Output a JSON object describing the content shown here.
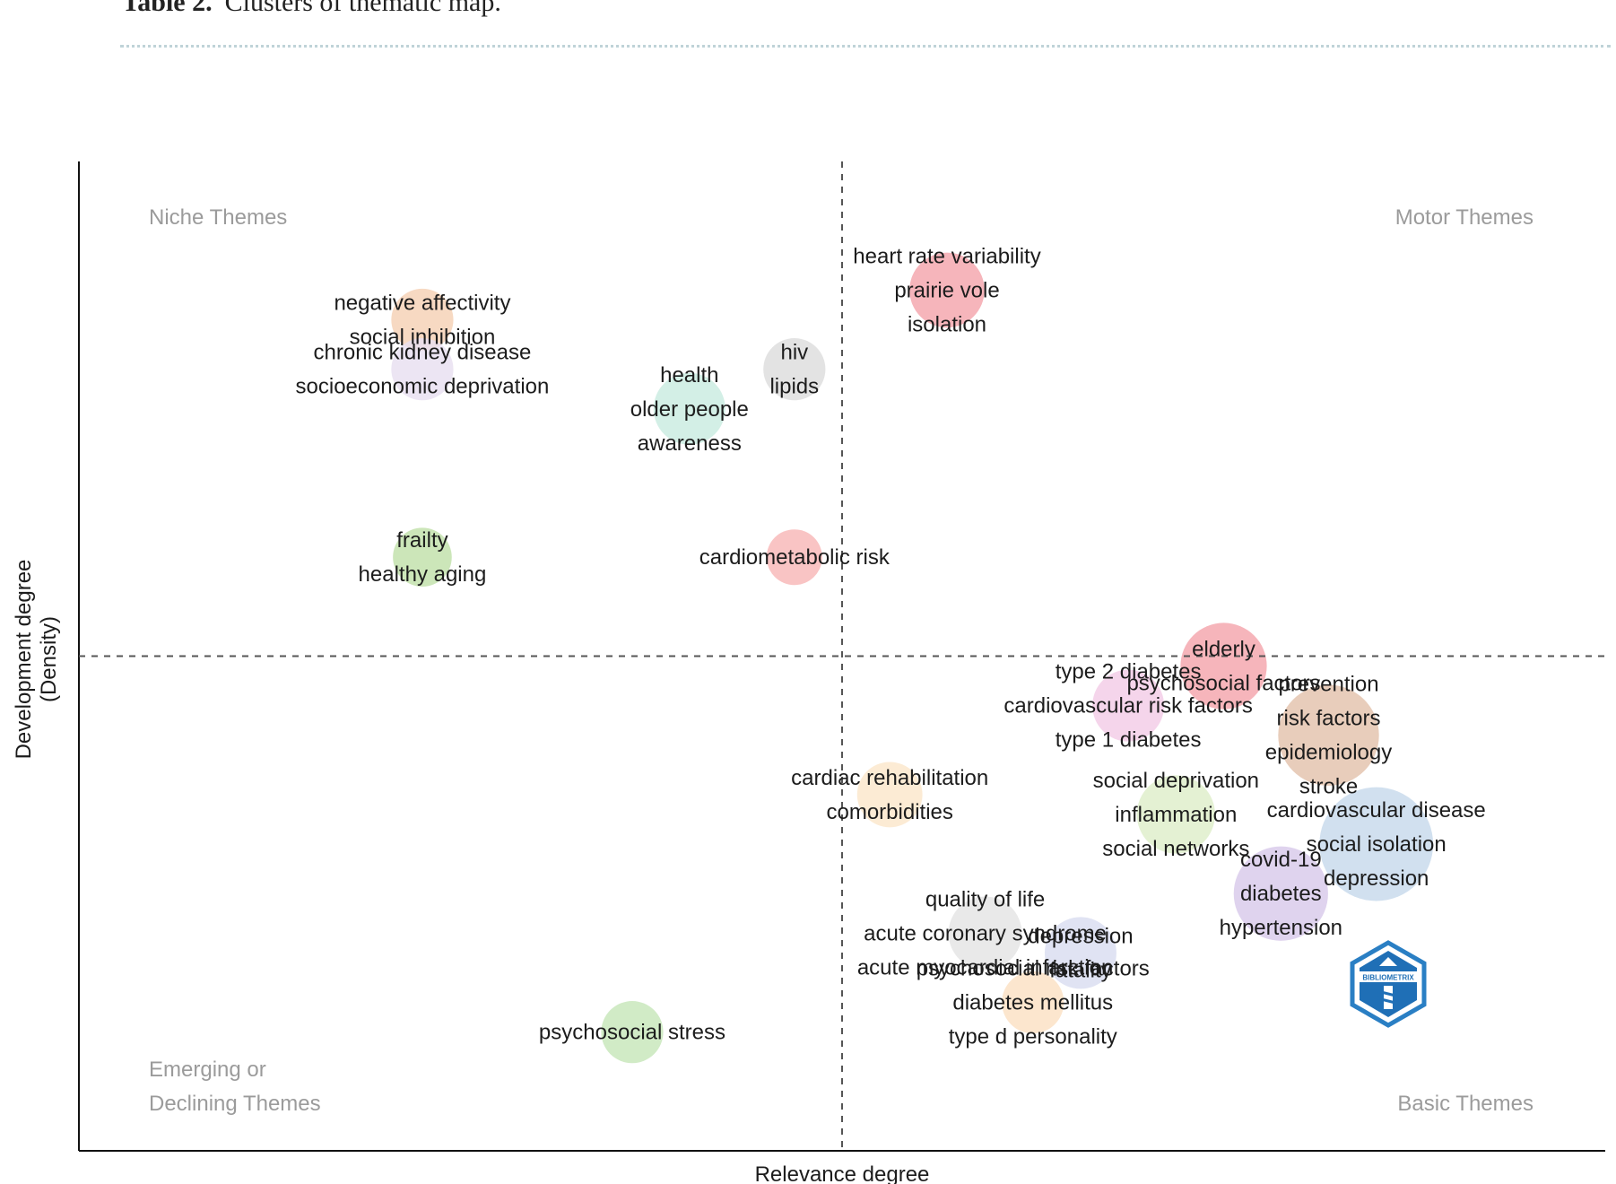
{
  "caption": {
    "label": "Table 2.",
    "text": "Clusters of thematic map."
  },
  "chart_data": {
    "type": "scatter",
    "xlabel": "Relevance degree",
    "ylabel_lines": [
      "Development degree",
      "(Density)"
    ],
    "quadrant_labels": {
      "top_left": [
        "Niche Themes"
      ],
      "top_right": [
        "Motor Themes"
      ],
      "bottom_left": [
        "Emerging or",
        "Declining Themes"
      ],
      "bottom_right": [
        "Basic Themes"
      ]
    },
    "watermark": "BIBLIOMETRIX",
    "xlim": [
      0,
      8.0
    ],
    "ylim": [
      0,
      1.0
    ],
    "x_divider": 4.0,
    "y_divider": 0.5,
    "clusters": [
      {
        "x": 4.55,
        "y": 0.87,
        "size": 1.1,
        "color": "#f4a3aa",
        "labels": [
          "heart rate variability",
          "prairie vole",
          "isolation"
        ]
      },
      {
        "x": 1.8,
        "y": 0.84,
        "size": 0.7,
        "color": "#f5cfb3",
        "labels": [
          "negative affectivity",
          "social inhibition"
        ]
      },
      {
        "x": 1.8,
        "y": 0.79,
        "size": 0.7,
        "color": "#e7def0",
        "labels": [
          "chronic kidney disease",
          "socioeconomic deprivation"
        ]
      },
      {
        "x": 3.75,
        "y": 0.79,
        "size": 0.7,
        "color": "#dcdcdc",
        "labels": [
          "hiv",
          "lipids"
        ]
      },
      {
        "x": 3.2,
        "y": 0.75,
        "size": 1.0,
        "color": "#c8ebe0",
        "labels": [
          "health",
          "older people",
          "awareness"
        ]
      },
      {
        "x": 1.8,
        "y": 0.6,
        "size": 0.6,
        "color": "#bfe0a8",
        "labels": [
          "frailty",
          "healthy aging"
        ]
      },
      {
        "x": 3.75,
        "y": 0.6,
        "size": 0.5,
        "color": "#f7b5b5",
        "labels": [
          "cardiometabolic risk"
        ]
      },
      {
        "x": 6.0,
        "y": 0.49,
        "size": 1.45,
        "color": "#f4a3aa",
        "labels": [
          "elderly",
          "psychosocial factors"
        ]
      },
      {
        "x": 5.5,
        "y": 0.45,
        "size": 1.0,
        "color": "#f3cbe6",
        "labels": [
          "type 2 diabetes",
          "cardiovascular risk factors",
          "type 1 diabetes"
        ]
      },
      {
        "x": 6.55,
        "y": 0.42,
        "size": 1.9,
        "color": "#e2c1aa",
        "labels": [
          "prevention",
          "risk factors",
          "epidemiology",
          "stroke"
        ]
      },
      {
        "x": 4.25,
        "y": 0.36,
        "size": 0.8,
        "color": "#fbe6c9",
        "labels": [
          "cardiac rehabilitation",
          "comorbidities"
        ]
      },
      {
        "x": 5.75,
        "y": 0.34,
        "size": 1.2,
        "color": "#ddedc8",
        "labels": [
          "social deprivation",
          "inflammation",
          "social networks"
        ]
      },
      {
        "x": 6.8,
        "y": 0.31,
        "size": 2.3,
        "color": "#c5d8eb",
        "labels": [
          "cardiovascular disease",
          "social isolation",
          "depression"
        ]
      },
      {
        "x": 6.3,
        "y": 0.26,
        "size": 1.7,
        "color": "#d7c8ea",
        "labels": [
          "covid-19",
          "diabetes",
          "hypertension"
        ]
      },
      {
        "x": 4.75,
        "y": 0.22,
        "size": 1.05,
        "color": "#e3e3e3",
        "labels": [
          "quality of life",
          "acute coronary syndrome",
          "acute myocardial infarction"
        ]
      },
      {
        "x": 5.25,
        "y": 0.2,
        "size": 1.0,
        "color": "#d8dcf0",
        "labels": [
          "depression",
          "fatality"
        ]
      },
      {
        "x": 5.0,
        "y": 0.15,
        "size": 0.7,
        "color": "#fbe0c2",
        "labels": [
          "psychosocial risk factors",
          "diabetes mellitus",
          "type d personality"
        ]
      },
      {
        "x": 2.9,
        "y": 0.12,
        "size": 0.7,
        "color": "#c5e6b8",
        "labels": [
          "psychosocial stress"
        ]
      }
    ]
  }
}
